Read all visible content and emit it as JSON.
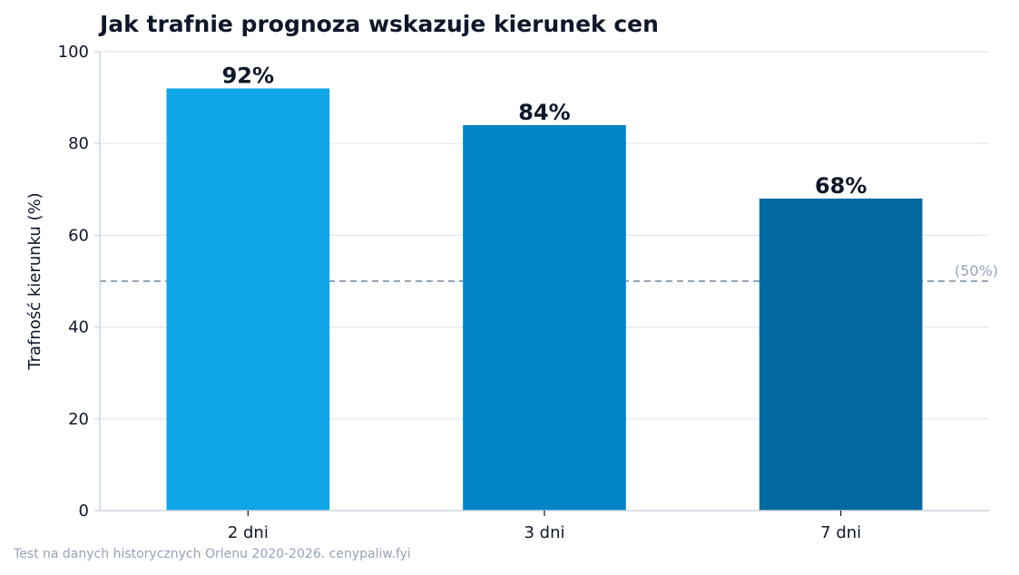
{
  "chart_data": {
    "type": "bar",
    "title": "Jak trafnie prognoza wskazuje kierunek cen",
    "xlabel": "",
    "ylabel": "Trafność kierunku (%)",
    "ylim": [
      0,
      100
    ],
    "yticks": [
      0,
      20,
      40,
      60,
      80,
      100
    ],
    "grid": "horizontal",
    "categories": [
      "2 dni",
      "3 dni",
      "7 dni"
    ],
    "values": [
      92,
      84,
      68
    ],
    "data_labels": [
      "92%",
      "84%",
      "68%"
    ],
    "bar_colors": [
      "#0ea5e9",
      "#0284c7",
      "#0369a1"
    ],
    "reference_line": {
      "value": 50,
      "label": "(50%)",
      "color": "#94a3b8"
    },
    "footnote": "Test na danych historycznych Orlenu 2020-2026. cenypaliw.fyi"
  },
  "colors": {
    "text": "#0f172a",
    "grid": "#e2e8f0",
    "axis": "#cbd5e1",
    "muted": "#94a3b8"
  }
}
